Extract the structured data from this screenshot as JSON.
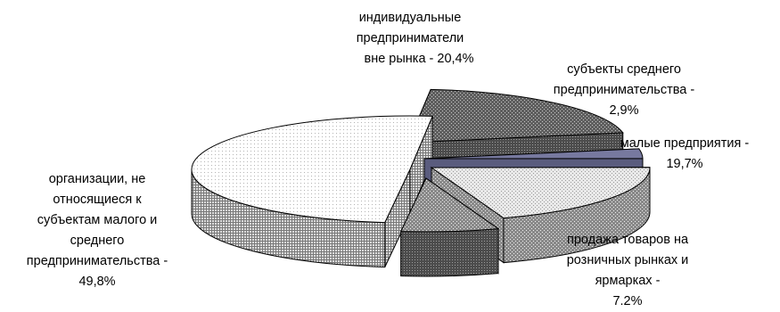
{
  "chart_data": {
    "type": "pie",
    "title": "",
    "style": "3d-exploded",
    "slices": [
      {
        "name": "individuals",
        "value": 20.4,
        "label_lines": [
          "индивидуальные",
          "предприниматели",
          "вне рынка - 20,4%"
        ],
        "fill": "dots",
        "color": "#6e6e6e"
      },
      {
        "name": "medium",
        "value": 2.9,
        "label_lines": [
          "субъекты среднего",
          "предпринимательства -",
          "2,9%"
        ],
        "fill": "solid",
        "color": "#7d7fb0"
      },
      {
        "name": "small",
        "value": 19.7,
        "label_lines": [
          "малые предприятия  -",
          "19,7%"
        ],
        "fill": "light-dots",
        "color": "#d9d9d9"
      },
      {
        "name": "retail",
        "value": 7.2,
        "label_lines": [
          "продажа товаров на",
          "розничных рынках  и",
          "ярмарках -",
          "7.2%"
        ],
        "fill": "dots",
        "color": "#8c8c8c"
      },
      {
        "name": "organizations",
        "value": 49.8,
        "label_lines": [
          "организации, не",
          "относящиеся к",
          "субъектам малого и",
          "среднего",
          "предпринимательства -",
          "49,8%"
        ],
        "fill": "white-dots",
        "color": "#f6f6f6"
      }
    ]
  }
}
